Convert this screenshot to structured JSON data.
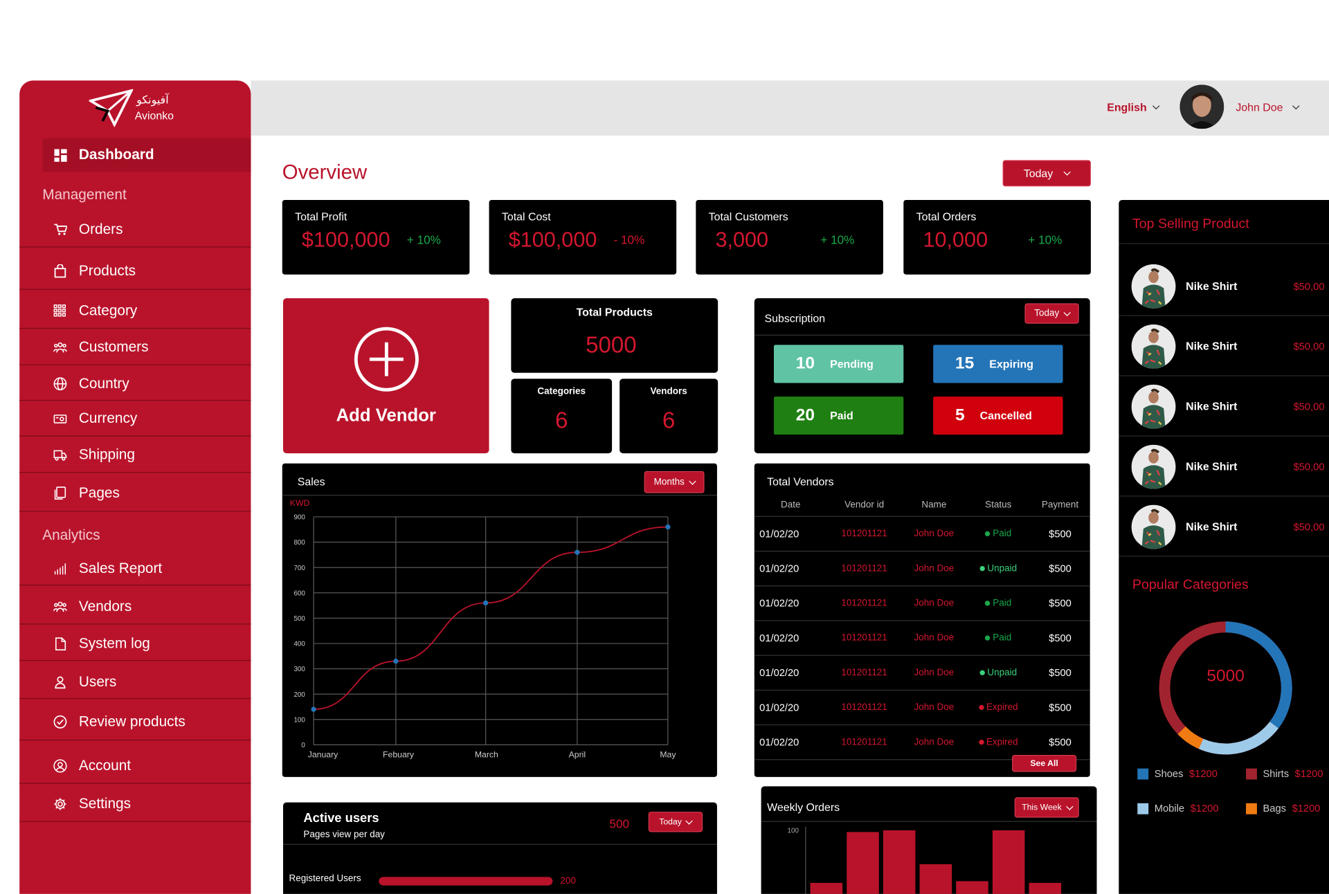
{
  "brand": {
    "name_arabic": "آفیونکو",
    "name": "Avionko"
  },
  "sidebar": {
    "active": "Dashboard",
    "management_title": "Management",
    "analytics_title": "Analytics",
    "items": [
      {
        "label": "Orders",
        "icon": "cart-icon"
      },
      {
        "label": "Products",
        "icon": "shopping-bag-icon"
      },
      {
        "label": "Category",
        "icon": "grid-icon"
      },
      {
        "label": "Customers",
        "icon": "people-icon"
      },
      {
        "label": "Country",
        "icon": "globe-icon"
      },
      {
        "label": "Currency",
        "icon": "cash-icon"
      },
      {
        "label": "Shipping",
        "icon": "truck-icon"
      },
      {
        "label": "Pages",
        "icon": "pages-icon"
      }
    ],
    "analytics_items": [
      {
        "label": "Sales Report",
        "icon": "bar-chart-icon"
      },
      {
        "label": "Vendors",
        "icon": "people-icon"
      },
      {
        "label": "System log",
        "icon": "document-icon"
      },
      {
        "label": "Users",
        "icon": "user-icon"
      },
      {
        "label": "Review products",
        "icon": "check-circle-icon"
      }
    ],
    "bottom_items": [
      {
        "label": "Account",
        "icon": "account-icon"
      },
      {
        "label": "Settings",
        "icon": "gear-icon"
      }
    ]
  },
  "topbar": {
    "language": "English",
    "user_name": "John Doe"
  },
  "overview": {
    "title": "Overview",
    "period": "Today",
    "stats": [
      {
        "title": "Total Profit",
        "value": "$100,000",
        "delta": "+ 10%",
        "delta_color": "#1aa84a"
      },
      {
        "title": "Total Cost",
        "value": "$100,000",
        "delta": "- 10%",
        "delta_color": "#d4172f"
      },
      {
        "title": "Total Customers",
        "value": "3,000",
        "delta": "+ 10%",
        "delta_color": "#1aa84a"
      },
      {
        "title": "Total Orders",
        "value": "10,000",
        "delta": "+ 10%",
        "delta_color": "#1aa84a"
      }
    ]
  },
  "add_vendor": {
    "label": "Add Vendor"
  },
  "totals": {
    "products_title": "Total Products",
    "products_value": "5000",
    "categories_title": "Categories",
    "categories_value": "6",
    "vendors_title": "Vendors",
    "vendors_value": "6"
  },
  "subscription": {
    "title": "Subscription",
    "period": "Today",
    "items": [
      {
        "count": "10",
        "label": "Pending",
        "color": "#5fc3a4"
      },
      {
        "count": "15",
        "label": "Expiring",
        "color": "#2375b8"
      },
      {
        "count": "20",
        "label": "Paid",
        "color": "#1f7f12"
      },
      {
        "count": "5",
        "label": "Cancelled",
        "color": "#d0000c"
      }
    ]
  },
  "sales": {
    "title": "Sales",
    "period": "Months",
    "unit": "KWD"
  },
  "chart_data": {
    "type": "line",
    "categories": [
      "January",
      "Febuary",
      "March",
      "April",
      "May"
    ],
    "values": [
      140,
      330,
      560,
      760,
      860
    ],
    "ylabel": "KWD",
    "ylim": [
      0,
      900
    ],
    "yticks": [
      0,
      100,
      200,
      300,
      400,
      500,
      600,
      700,
      800,
      900
    ],
    "grid": true,
    "colors": {
      "line": "#b9132b",
      "points": "#2375b8"
    }
  },
  "vendors_table": {
    "title": "Total Vendors",
    "columns": [
      "Date",
      "Vendor id",
      "Name",
      "Status",
      "Payment"
    ],
    "rows": [
      {
        "date": "01/02/20",
        "vendor_id": "101201121",
        "name": "John Doe",
        "status": "Paid",
        "payment": "$500"
      },
      {
        "date": "01/02/20",
        "vendor_id": "101201121",
        "name": "John Doe",
        "status": "Unpaid",
        "payment": "$500"
      },
      {
        "date": "01/02/20",
        "vendor_id": "101201121",
        "name": "John Doe",
        "status": "Paid",
        "payment": "$500"
      },
      {
        "date": "01/02/20",
        "vendor_id": "101201121",
        "name": "John Doe",
        "status": "Paid",
        "payment": "$500"
      },
      {
        "date": "01/02/20",
        "vendor_id": "101201121",
        "name": "John Doe",
        "status": "Unpaid",
        "payment": "$500"
      },
      {
        "date": "01/02/20",
        "vendor_id": "101201121",
        "name": "John Doe",
        "status": "Expired",
        "payment": "$500"
      },
      {
        "date": "01/02/20",
        "vendor_id": "101201121",
        "name": "John Doe",
        "status": "Expired",
        "payment": "$500"
      }
    ],
    "see_all": "See All",
    "status_colors": {
      "Paid": "#1aa84a",
      "Unpaid": "#3ad17a",
      "Expired": "#d4172f"
    }
  },
  "top_selling": {
    "title": "Top Selling Product",
    "items": [
      {
        "name": "Nike Shirt",
        "price": "$50,00"
      },
      {
        "name": "Nike Shirt",
        "price": "$50,00"
      },
      {
        "name": "Nike Shirt",
        "price": "$50,00"
      },
      {
        "name": "Nike Shirt",
        "price": "$50,00"
      },
      {
        "name": "Nike Shirt",
        "price": "$50,00"
      }
    ]
  },
  "popular_categories": {
    "title": "Popular Categories",
    "total": "5000",
    "legend": [
      {
        "name": "Shoes",
        "value": "$1200",
        "color": "#2375b8"
      },
      {
        "name": "Shirts",
        "value": "$1200",
        "color": "#a1232f"
      },
      {
        "name": "Mobile",
        "value": "$1200",
        "color": "#9ecae9"
      },
      {
        "name": "Bags",
        "value": "$1200",
        "color": "#f07b12"
      }
    ]
  },
  "active_users": {
    "title": "Active users",
    "subtitle": "Pages view per day",
    "count": "500",
    "period": "Today",
    "bar_label": "Registered Users",
    "bar_value": "200"
  },
  "weekly_orders": {
    "title": "Weekly Orders",
    "period": "This Week",
    "ytick_top": "100"
  }
}
